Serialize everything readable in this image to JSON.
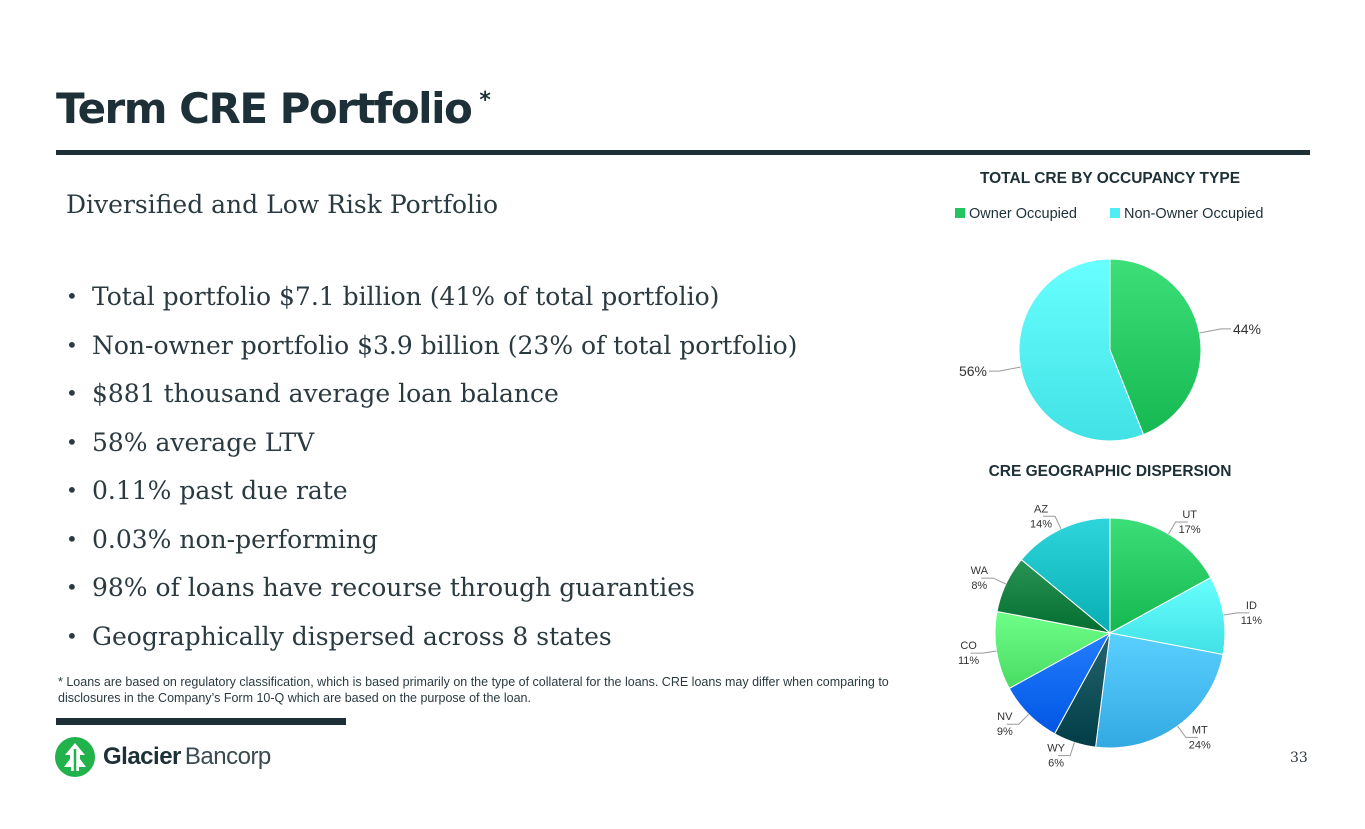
{
  "slide": {
    "title": "Term CRE Portfolio",
    "title_mark": "*",
    "subtitle": "Diversified and Low Risk Portfolio",
    "bullets": [
      "Total portfolio $7.1 billion (41% of total portfolio)",
      "Non-owner portfolio $3.9 billion (23% of total portfolio)",
      "$881 thousand average loan balance",
      "58% average LTV",
      "0.11% past due rate",
      "0.03% non-performing",
      "98% of loans have recourse through guaranties",
      "Geographically dispersed across 8 states"
    ],
    "bullet_glyph": "•",
    "footnote": "* Loans are based on regulatory classification, which is based primarily on the type of collateral for the loans. CRE loans may differ when comparing to disclosures in the Company’s Form 10-Q which are based on the purpose of the loan.",
    "logo": {
      "name_bold": "Glacier",
      "name_light": "Bancorp"
    },
    "page_number": "33",
    "colors": {
      "primary": "#1d3037"
    }
  },
  "chart_data": [
    {
      "type": "pie",
      "title": "TOTAL CRE BY OCCUPANCY TYPE",
      "legend_position": "top",
      "categories": [
        "Owner Occupied",
        "Non-Owner Occupied"
      ],
      "values": [
        44,
        56
      ],
      "labels": [
        "44%",
        "56%"
      ],
      "colors": [
        "#22c55e",
        "#4eeef2"
      ]
    },
    {
      "type": "pie",
      "title": "CRE GEOGRAPHIC DISPERSION",
      "legend_position": "none",
      "categories": [
        "UT",
        "ID",
        "MT",
        "WY",
        "NV",
        "CO",
        "WA",
        "AZ"
      ],
      "values": [
        17,
        11,
        24,
        6,
        9,
        11,
        8,
        14
      ],
      "labels": [
        "17%",
        "11%",
        "24%",
        "6%",
        "9%",
        "11%",
        "8%",
        "14%"
      ],
      "colors": [
        "#22c45e",
        "#4eeef2",
        "#40b6f0",
        "#0b4a54",
        "#0a63f0",
        "#55e86f",
        "#0f7a3c",
        "#14bcc2"
      ]
    }
  ]
}
